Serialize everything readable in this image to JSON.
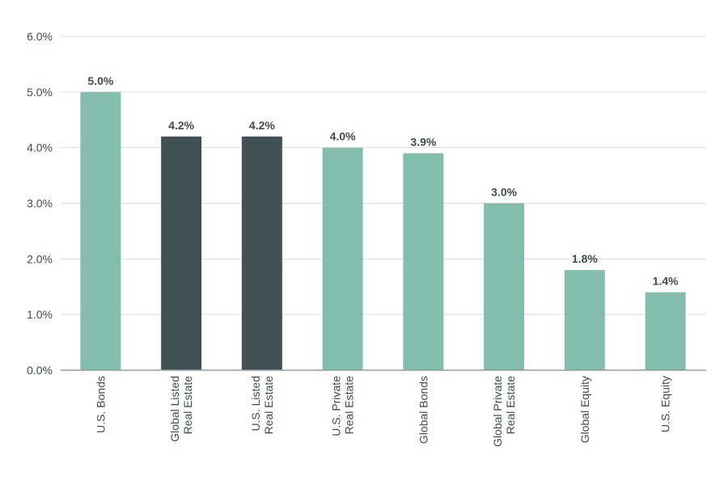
{
  "chart_data": {
    "type": "bar",
    "title": "",
    "xlabel": "",
    "ylabel": "",
    "ylim": [
      0,
      6
    ],
    "yticks": [
      "0.0%",
      "1.0%",
      "2.0%",
      "3.0%",
      "4.0%",
      "5.0%",
      "6.0%"
    ],
    "grid": true,
    "categories": [
      [
        "U.S. Bonds"
      ],
      [
        "Global Listed",
        "Real Estate"
      ],
      [
        "U.S. Listed",
        "Real Estate"
      ],
      [
        "U.S. Private",
        "Real Estate"
      ],
      [
        "Global Bonds"
      ],
      [
        "Global Private",
        "Real Estate"
      ],
      [
        "Global Equity"
      ],
      [
        "U.S. Equity"
      ]
    ],
    "values": [
      5.0,
      4.2,
      4.2,
      4.0,
      3.9,
      3.0,
      1.8,
      1.4
    ],
    "value_labels": [
      "5.0%",
      "4.2%",
      "4.2%",
      "4.0%",
      "3.9%",
      "3.0%",
      "1.8%",
      "1.4%"
    ],
    "highlight": [
      false,
      true,
      true,
      false,
      false,
      false,
      false,
      false
    ],
    "colors": {
      "default": "#84bcad",
      "highlight": "#425155",
      "grid": "#dcdcdc",
      "axis": "#9a9a9a"
    }
  }
}
